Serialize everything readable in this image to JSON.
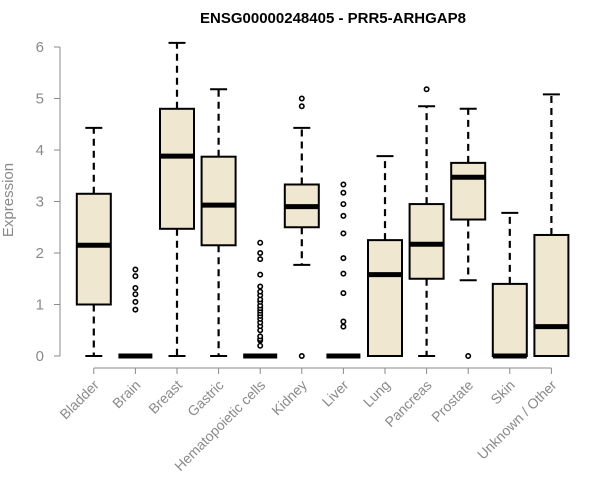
{
  "chart_data": {
    "type": "boxplot",
    "title": "ENSG00000248405 - PRR5-ARHGAP8",
    "xlabel": "",
    "ylabel": "Expression",
    "ylim": [
      0,
      6.2
    ],
    "yticks": [
      0,
      1,
      2,
      3,
      4,
      5,
      6
    ],
    "ytick_labels": [
      "0",
      "1",
      "2",
      "3",
      "4",
      "5",
      "6"
    ],
    "grid": false,
    "box_fill": "#efe7cf",
    "line_color": "#000000",
    "axis_color": "#8a8a8a",
    "categories": [
      "Bladder",
      "Brain",
      "Breast",
      "Gastric",
      "Hematopoietic cells",
      "Kidney",
      "Liver",
      "Lung",
      "Pancreas",
      "Prostate",
      "Skin",
      "Unknown / Other"
    ],
    "boxes": [
      {
        "min": 0,
        "q1": 1.0,
        "median": 2.15,
        "q3": 3.15,
        "max": 4.43,
        "outliers": []
      },
      {
        "min": 0,
        "q1": 0,
        "median": 0,
        "q3": 0,
        "max": 0,
        "outliers": [
          0.9,
          1.05,
          1.2,
          1.32,
          1.55,
          1.68
        ]
      },
      {
        "min": 0,
        "q1": 2.47,
        "median": 3.88,
        "q3": 4.8,
        "max": 6.08,
        "outliers": []
      },
      {
        "min": 0,
        "q1": 2.15,
        "median": 2.93,
        "q3": 3.87,
        "max": 5.18,
        "outliers": []
      },
      {
        "min": 0,
        "q1": 0,
        "median": 0,
        "q3": 0,
        "max": 0,
        "outliers": [
          0.2,
          0.3,
          0.33,
          0.38,
          0.5,
          0.58,
          0.65,
          0.72,
          0.78,
          0.83,
          0.88,
          0.93,
          0.98,
          1.05,
          1.1,
          1.18,
          1.25,
          1.35,
          1.58,
          1.88,
          2.0,
          2.2
        ]
      },
      {
        "min": 1.77,
        "q1": 2.5,
        "median": 2.9,
        "q3": 3.33,
        "max": 4.43,
        "outliers": [
          0,
          4.85,
          5.0
        ]
      },
      {
        "min": 0,
        "q1": 0,
        "median": 0,
        "q3": 0,
        "max": 0,
        "outliers": [
          0.57,
          0.67,
          1.22,
          1.6,
          1.9,
          2.38,
          2.72,
          2.95,
          3.17,
          3.33
        ]
      },
      {
        "min": 0,
        "q1": 0,
        "median": 1.58,
        "q3": 2.25,
        "max": 3.88,
        "outliers": []
      },
      {
        "min": 0,
        "q1": 1.5,
        "median": 2.17,
        "q3": 2.95,
        "max": 4.85,
        "outliers": [
          5.18
        ]
      },
      {
        "min": 1.47,
        "q1": 2.65,
        "median": 3.47,
        "q3": 3.75,
        "max": 4.8,
        "outliers": [
          0
        ]
      },
      {
        "min": 0,
        "q1": 0,
        "median": 0,
        "q3": 1.4,
        "max": 2.78,
        "outliers": []
      },
      {
        "min": 0,
        "q1": 0,
        "median": 0.57,
        "q3": 2.35,
        "max": 5.08,
        "outliers": []
      }
    ]
  }
}
